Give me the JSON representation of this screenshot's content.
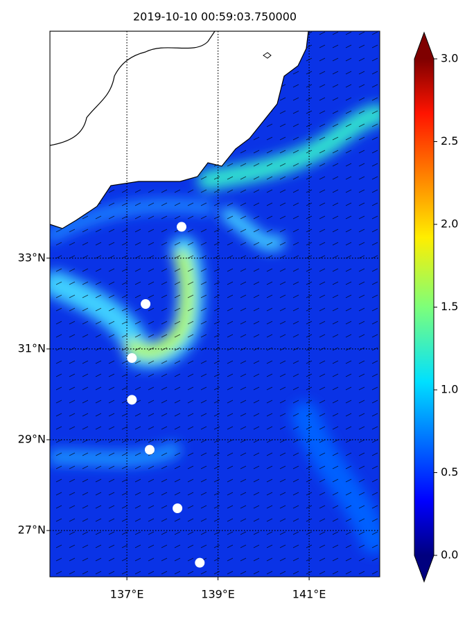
{
  "map": {
    "title": "2019-10-10 00:59:03.750000",
    "lonlim": [
      135.31,
      142.55
    ],
    "latlim": [
      25.98,
      38.0
    ],
    "lonticks": [
      {
        "value": 137,
        "label": "137°E"
      },
      {
        "value": 139,
        "label": "139°E"
      },
      {
        "value": 141,
        "label": "141°E"
      }
    ],
    "latticks": [
      {
        "value": 27,
        "label": "27°N"
      },
      {
        "value": 29,
        "label": "29°N"
      },
      {
        "value": 31,
        "label": "31°N"
      },
      {
        "value": 33,
        "label": "33°N"
      }
    ],
    "points": {
      "lon": [
        138.2,
        137.41,
        137.11,
        137.11,
        137.5,
        138.11,
        138.6
      ],
      "lat": [
        33.69,
        31.99,
        30.8,
        29.88,
        28.78,
        27.49,
        26.29
      ],
      "color": "#ffffff"
    },
    "colorbar": {
      "lim": [
        0,
        3
      ],
      "cmap": "jet",
      "ticks": [
        {
          "value": 0,
          "label": "0.0"
        },
        {
          "value": 0.5,
          "label": "0.5"
        },
        {
          "value": 1,
          "label": "1.0"
        },
        {
          "value": 1.5,
          "label": "1.5"
        },
        {
          "value": 2,
          "label": "2.0"
        },
        {
          "value": 2.5,
          "label": "2.5"
        },
        {
          "value": 3,
          "label": "3.0"
        }
      ]
    }
  }
}
